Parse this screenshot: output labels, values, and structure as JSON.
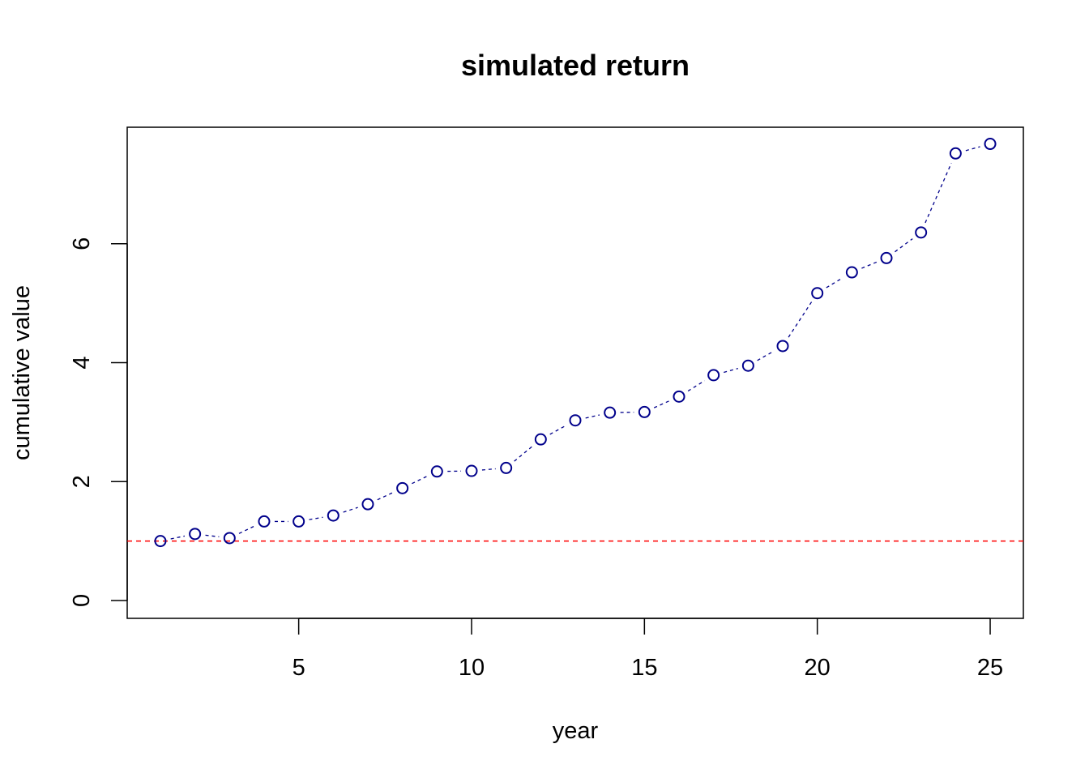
{
  "chart_data": {
    "type": "line",
    "title": "simulated return",
    "xlabel": "year",
    "ylabel": "cumulative value",
    "xlim": [
      0.04,
      25.96
    ],
    "ylim": [
      -0.3,
      7.96
    ],
    "x_ticks": [
      5,
      10,
      15,
      20,
      25
    ],
    "y_ticks": [
      0,
      2,
      4,
      6
    ],
    "grid": false,
    "series": [
      {
        "x": [
          1,
          2,
          3,
          4,
          5,
          6,
          7,
          8,
          9,
          10,
          11,
          12,
          13,
          14,
          15,
          16,
          17,
          18,
          19,
          20,
          21,
          22,
          23,
          24,
          25
        ],
        "values": [
          1.0,
          1.12,
          1.05,
          1.33,
          1.33,
          1.43,
          1.62,
          1.89,
          2.17,
          2.18,
          2.23,
          2.71,
          3.03,
          3.16,
          3.17,
          3.43,
          3.79,
          3.95,
          4.28,
          5.17,
          5.52,
          5.76,
          6.19,
          7.52,
          7.68
        ],
        "color": "#00008b",
        "marker": "open-circle",
        "line_style": "dashed-short"
      }
    ],
    "reference_lines": [
      {
        "orientation": "horizontal",
        "y": 1,
        "color": "#ff0000",
        "line_style": "dashed"
      }
    ]
  }
}
